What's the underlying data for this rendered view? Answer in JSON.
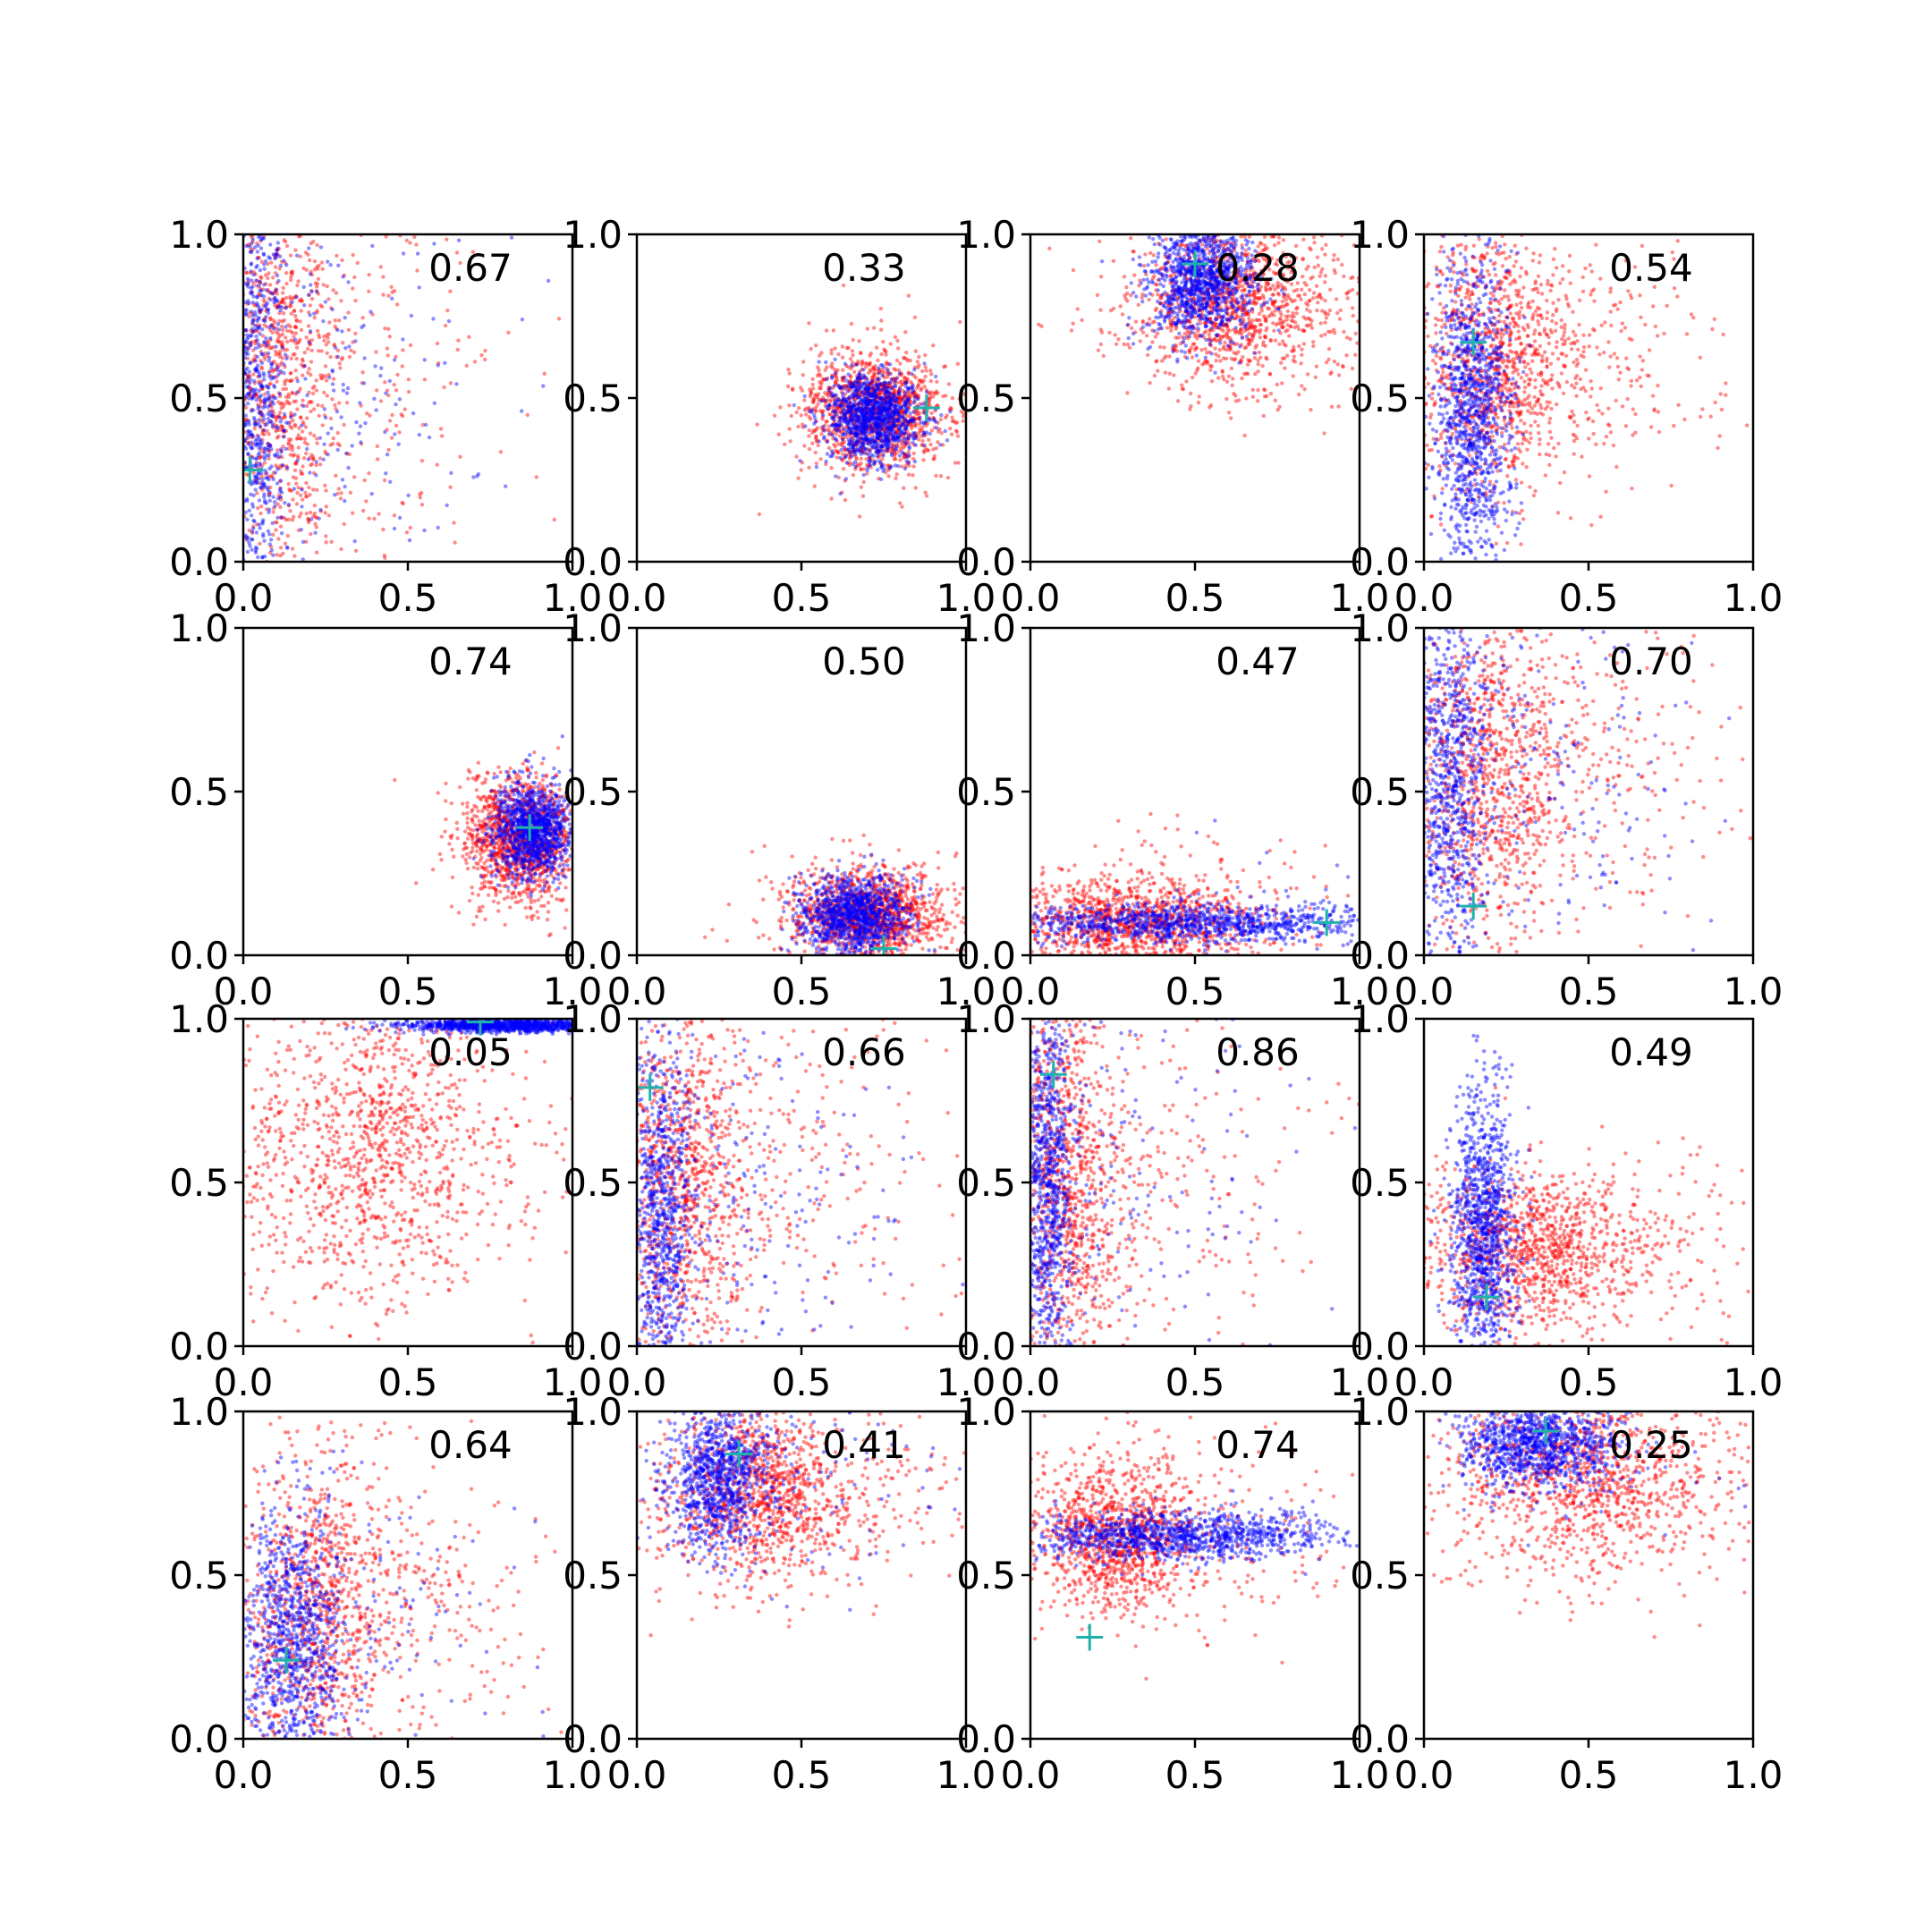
{
  "chart_data": {
    "type": "scatter",
    "layout": "4x4 grid of scatter panels",
    "xlim": [
      0,
      1
    ],
    "ylim": [
      0,
      1
    ],
    "xticks": [
      "0.0",
      "0.5",
      "1.0"
    ],
    "yticks": [
      "0.0",
      "0.5",
      "1.0"
    ],
    "grid": false,
    "colors": {
      "series_a": "#ff0000",
      "series_b": "#0000ff",
      "marker": "#20b2aa"
    },
    "panels": [
      {
        "label": "0.67",
        "red": {
          "cx": 0.1,
          "cy": 0.6,
          "sx": 0.1,
          "sy": 0.35,
          "tail": 0.3
        },
        "blue": {
          "cx": 0.03,
          "cy": 0.55,
          "sx": 0.05,
          "sy": 0.38,
          "tail": 0.25
        },
        "cross": [
          0.02,
          0.28
        ]
      },
      {
        "label": "0.33",
        "red": {
          "cx": 0.72,
          "cy": 0.46,
          "sx": 0.11,
          "sy": 0.09,
          "tail": 0.05
        },
        "blue": {
          "cx": 0.72,
          "cy": 0.44,
          "sx": 0.07,
          "sy": 0.07,
          "tail": 0.0
        },
        "cross": [
          0.88,
          0.47
        ]
      },
      {
        "label": "0.28",
        "red": {
          "cx": 0.6,
          "cy": 0.78,
          "sx": 0.14,
          "sy": 0.12,
          "tail": 0.25
        },
        "blue": {
          "cx": 0.52,
          "cy": 0.86,
          "sx": 0.08,
          "sy": 0.09,
          "tail": 0.0
        },
        "cross": [
          0.5,
          0.91
        ]
      },
      {
        "label": "0.54",
        "red": {
          "cx": 0.2,
          "cy": 0.62,
          "sx": 0.12,
          "sy": 0.2,
          "tail": 0.35
        },
        "blue": {
          "cx": 0.15,
          "cy": 0.45,
          "sx": 0.06,
          "sy": 0.24,
          "tail": 0.0
        },
        "cross": [
          0.15,
          0.67
        ]
      },
      {
        "label": "0.74",
        "red": {
          "cx": 0.84,
          "cy": 0.36,
          "sx": 0.09,
          "sy": 0.1,
          "tail": 0.02
        },
        "blue": {
          "cx": 0.88,
          "cy": 0.38,
          "sx": 0.06,
          "sy": 0.07,
          "tail": 0.0
        },
        "cross": [
          0.87,
          0.39
        ]
      },
      {
        "label": "0.50",
        "red": {
          "cx": 0.7,
          "cy": 0.13,
          "sx": 0.13,
          "sy": 0.07,
          "tail": 0.05
        },
        "blue": {
          "cx": 0.66,
          "cy": 0.12,
          "sx": 0.08,
          "sy": 0.06,
          "tail": 0.0
        },
        "cross": [
          0.75,
          0.02
        ]
      },
      {
        "label": "0.47",
        "red": {
          "cx": 0.3,
          "cy": 0.1,
          "sx": 0.2,
          "sy": 0.07,
          "tail": 0.1
        },
        "blue": {
          "cx": 0.5,
          "cy": 0.1,
          "sx": 0.3,
          "sy": 0.03,
          "tail": 0.05
        },
        "cross": [
          0.9,
          0.1
        ]
      },
      {
        "label": "0.70",
        "red": {
          "cx": 0.18,
          "cy": 0.55,
          "sx": 0.12,
          "sy": 0.25,
          "tail": 0.35
        },
        "blue": {
          "cx": 0.08,
          "cy": 0.55,
          "sx": 0.06,
          "sy": 0.3,
          "tail": 0.25
        },
        "cross": [
          0.15,
          0.15
        ]
      },
      {
        "label": "0.05",
        "red": {
          "cx": 0.35,
          "cy": 0.6,
          "sx": 0.2,
          "sy": 0.25,
          "tail": 0.3
        },
        "blue": {
          "cx": 0.8,
          "cy": 0.98,
          "sx": 0.15,
          "sy": 0.01,
          "tail": 0.0
        },
        "cross": [
          0.72,
          0.99
        ]
      },
      {
        "label": "0.66",
        "red": {
          "cx": 0.12,
          "cy": 0.5,
          "sx": 0.1,
          "sy": 0.28,
          "tail": 0.35
        },
        "blue": {
          "cx": 0.07,
          "cy": 0.4,
          "sx": 0.05,
          "sy": 0.3,
          "tail": 0.25
        },
        "cross": [
          0.04,
          0.79
        ]
      },
      {
        "label": "0.86",
        "red": {
          "cx": 0.1,
          "cy": 0.5,
          "sx": 0.08,
          "sy": 0.3,
          "tail": 0.3
        },
        "blue": {
          "cx": 0.05,
          "cy": 0.5,
          "sx": 0.04,
          "sy": 0.3,
          "tail": 0.2
        },
        "cross": [
          0.07,
          0.83
        ]
      },
      {
        "label": "0.49",
        "red": {
          "cx": 0.3,
          "cy": 0.3,
          "sx": 0.18,
          "sy": 0.12,
          "tail": 0.3
        },
        "blue": {
          "cx": 0.18,
          "cy": 0.35,
          "sx": 0.05,
          "sy": 0.22,
          "tail": 0.0
        },
        "cross": [
          0.19,
          0.15
        ]
      },
      {
        "label": "0.64",
        "red": {
          "cx": 0.2,
          "cy": 0.4,
          "sx": 0.12,
          "sy": 0.25,
          "tail": 0.35
        },
        "blue": {
          "cx": 0.15,
          "cy": 0.3,
          "sx": 0.08,
          "sy": 0.22,
          "tail": 0.15
        },
        "cross": [
          0.13,
          0.24
        ]
      },
      {
        "label": "0.41",
        "red": {
          "cx": 0.35,
          "cy": 0.75,
          "sx": 0.14,
          "sy": 0.14,
          "tail": 0.3
        },
        "blue": {
          "cx": 0.25,
          "cy": 0.8,
          "sx": 0.08,
          "sy": 0.12,
          "tail": 0.1
        },
        "cross": [
          0.31,
          0.87
        ]
      },
      {
        "label": "0.74",
        "red": {
          "cx": 0.25,
          "cy": 0.62,
          "sx": 0.12,
          "sy": 0.12,
          "tail": 0.25
        },
        "blue": {
          "cx": 0.45,
          "cy": 0.62,
          "sx": 0.25,
          "sy": 0.04,
          "tail": 0.0
        },
        "cross": [
          0.18,
          0.31
        ]
      },
      {
        "label": "0.25",
        "red": {
          "cx": 0.45,
          "cy": 0.8,
          "sx": 0.2,
          "sy": 0.15,
          "tail": 0.3
        },
        "blue": {
          "cx": 0.35,
          "cy": 0.9,
          "sx": 0.12,
          "sy": 0.07,
          "tail": 0.05
        },
        "cross": [
          0.37,
          0.94
        ]
      }
    ]
  }
}
